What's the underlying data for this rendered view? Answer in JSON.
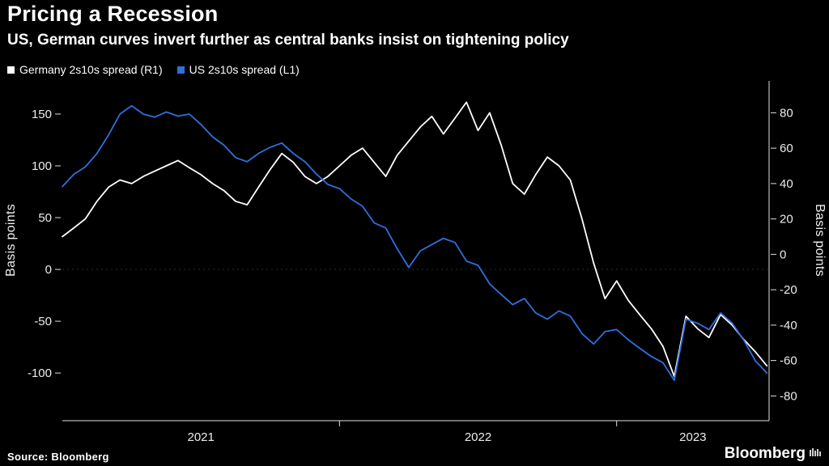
{
  "header": {
    "title": "Pricing a Recession",
    "subtitle": "US, German curves invert further as central banks insist on tightening policy"
  },
  "legend": [
    {
      "label": "Germany 2s10s spread (R1)",
      "color": "#ffffff"
    },
    {
      "label": "US 2s10s spread (L1)",
      "color": "#2f6fdf"
    }
  ],
  "footer": {
    "source": "Source: Bloomberg",
    "brand": "Bloomberg"
  },
  "colors": {
    "background": "#000000",
    "axis_line": "#e2e2e2",
    "tick_text": "#ececec",
    "us_blue": "#2f6fdf",
    "germany_white": "#ffffff"
  },
  "chart_data": {
    "type": "line",
    "title": "Pricing a Recession",
    "subtitle": "US, German curves invert further as central banks insist on tightening policy",
    "grid": "off",
    "legend_position": "top-left",
    "x_ticks": [
      "2021",
      "2022",
      "2023"
    ],
    "x_range": [
      2021.0,
      2023.55
    ],
    "left_axis": {
      "label": "Basis points",
      "ticks": [
        150,
        100,
        50,
        0,
        -50,
        -100
      ],
      "range": [
        -146,
        182
      ]
    },
    "right_axis": {
      "label": "Basis points",
      "ticks": [
        80,
        60,
        40,
        20,
        0,
        -20,
        -40,
        -60,
        -80
      ],
      "range": [
        -94,
        98
      ]
    },
    "x": [
      2021.0,
      2021.042,
      2021.083,
      2021.125,
      2021.167,
      2021.208,
      2021.25,
      2021.292,
      2021.333,
      2021.375,
      2021.417,
      2021.458,
      2021.5,
      2021.542,
      2021.583,
      2021.625,
      2021.667,
      2021.708,
      2021.75,
      2021.792,
      2021.833,
      2021.875,
      2021.917,
      2021.958,
      2022.0,
      2022.042,
      2022.083,
      2022.125,
      2022.167,
      2022.208,
      2022.25,
      2022.292,
      2022.333,
      2022.375,
      2022.417,
      2022.458,
      2022.5,
      2022.542,
      2022.583,
      2022.625,
      2022.667,
      2022.708,
      2022.75,
      2022.792,
      2022.833,
      2022.875,
      2022.917,
      2022.958,
      2023.0,
      2023.042,
      2023.083,
      2023.125,
      2023.167,
      2023.208,
      2023.25,
      2023.292,
      2023.333,
      2023.375,
      2023.417,
      2023.458,
      2023.5,
      2023.542
    ],
    "series": [
      {
        "name": "Germany 2s10s spread (R1)",
        "axis": "right",
        "color": "#ffffff",
        "unit": "basis points",
        "values": [
          10,
          15,
          20,
          30,
          38,
          42,
          40,
          44,
          47,
          50,
          53,
          49,
          45,
          40,
          36,
          30,
          28,
          38,
          48,
          57,
          52,
          44,
          40,
          44,
          50,
          56,
          60,
          52,
          44,
          56,
          64,
          72,
          78,
          68,
          77,
          86,
          70,
          80,
          62,
          40,
          34,
          45,
          55,
          50,
          42,
          20,
          -5,
          -25,
          -15,
          -26,
          -34,
          -42,
          -52,
          -69,
          -35,
          -42,
          -47,
          -34,
          -40,
          -48,
          -55,
          -63
        ]
      },
      {
        "name": "US 2s10s spread (L1)",
        "axis": "left",
        "color": "#2f6fdf",
        "unit": "basis points",
        "values": [
          80,
          92,
          99,
          112,
          130,
          150,
          158,
          150,
          147,
          152,
          148,
          150,
          140,
          128,
          120,
          108,
          104,
          112,
          118,
          122,
          112,
          104,
          92,
          82,
          78,
          68,
          61,
          45,
          40,
          20,
          2,
          18,
          24,
          30,
          26,
          8,
          4,
          -14,
          -24,
          -34,
          -28,
          -42,
          -48,
          -40,
          -45,
          -62,
          -72,
          -60,
          -58,
          -68,
          -76,
          -84,
          -90,
          -107,
          -48,
          -52,
          -58,
          -42,
          -52,
          -68,
          -88,
          -100
        ]
      }
    ]
  }
}
